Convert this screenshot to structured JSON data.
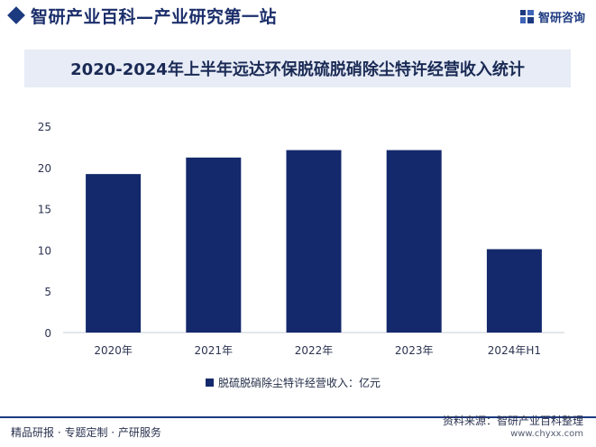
{
  "header": {
    "title": "智研产业百科—产业研究第一站",
    "brand_name": "智研咨询",
    "brand_logo": "zhiyan-logo-icon"
  },
  "chart_data": {
    "type": "bar",
    "title": "2020-2024年上半年远达环保脱硫脱硝除尘特许经营收入统计",
    "categories": [
      "2020年",
      "2021年",
      "2022年",
      "2023年",
      "2024年H1"
    ],
    "series": [
      {
        "name": "脱硫脱硝除尘特许经营收入：亿元",
        "values": [
          19.2,
          21.2,
          22.1,
          22.1,
          10.1
        ]
      }
    ],
    "ylim": [
      0,
      25
    ],
    "yticks": [
      0,
      5,
      10,
      15,
      20,
      25
    ],
    "legend": "bottom-center",
    "grid": false,
    "bar_color": "#14296b"
  },
  "footer": {
    "left": "精品研报 · 专题定制 · 产研服务",
    "source": "资料来源：智研产业百科整理",
    "site": "www.chyxx.com"
  }
}
